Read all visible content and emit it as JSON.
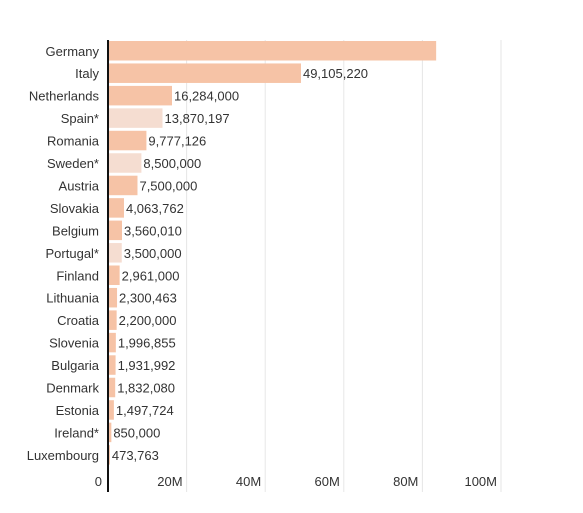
{
  "chart_data": {
    "type": "bar",
    "orientation": "horizontal",
    "title": "",
    "xlabel": "",
    "ylabel": "",
    "xlim": [
      0,
      100000000
    ],
    "grid": true,
    "legend": "none",
    "colors": {
      "bar": "#f6c3a6",
      "bar_light": "#f5ddd1"
    },
    "ticks": [
      {
        "value": 0,
        "label": "0"
      },
      {
        "value": 20000000,
        "label": "20M"
      },
      {
        "value": 40000000,
        "label": "40M"
      },
      {
        "value": 60000000,
        "label": "60M"
      },
      {
        "value": 80000000,
        "label": "80M"
      },
      {
        "value": 100000000,
        "label": "100M"
      }
    ],
    "categories": [
      "Germany",
      "Italy",
      "Netherlands",
      "Spain*",
      "Romania",
      "Sweden*",
      "Austria",
      "Slovakia",
      "Belgium",
      "Portugal*",
      "Finland",
      "Lithuania",
      "Croatia",
      "Slovenia",
      "Bulgaria",
      "Denmark",
      "Estonia",
      "Ireland*",
      "Luxembourg"
    ],
    "values": [
      83500000,
      49105220,
      16284000,
      13870197,
      9777126,
      8500000,
      7500000,
      4063762,
      3560010,
      3500000,
      2961000,
      2300463,
      2200000,
      1996855,
      1931992,
      1832080,
      1497724,
      850000,
      473763
    ],
    "value_labels": [
      "",
      "49,105,220",
      "16,284,000",
      "13,870,197",
      "9,777,126",
      "8,500,000",
      "7,500,000",
      "4,063,762",
      "3,560,010",
      "3,500,000",
      "2,961,000",
      "2,300,463",
      "2,200,000",
      "1,996,855",
      "1,931,992",
      "1,832,080",
      "1,497,724",
      "850,000",
      "473,763"
    ],
    "light": [
      false,
      false,
      false,
      true,
      false,
      true,
      false,
      false,
      false,
      true,
      false,
      false,
      false,
      false,
      false,
      false,
      false,
      false,
      false
    ]
  }
}
